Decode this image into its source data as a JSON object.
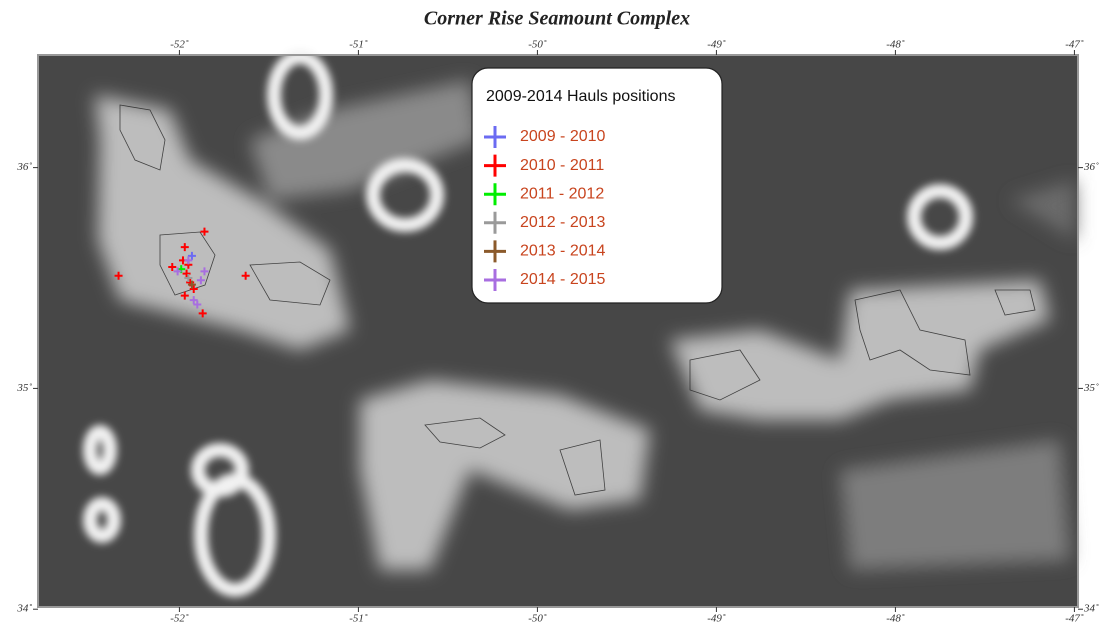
{
  "chart_data": {
    "type": "scatter",
    "title": "Corner Rise Seamount Complex",
    "legend_title": "2009-2014 Hauls positions",
    "xlim": [
      -52.79,
      -46.98
    ],
    "ylim": [
      34.01,
      36.51
    ],
    "xticks": [
      {
        "value": -52,
        "label": "-52˚"
      },
      {
        "value": -51,
        "label": "-51˚"
      },
      {
        "value": -50,
        "label": "-50˚"
      },
      {
        "value": -49,
        "label": "-49˚"
      },
      {
        "value": -48,
        "label": "-48˚"
      },
      {
        "value": -47,
        "label": "-47˚"
      }
    ],
    "yticks": [
      {
        "value": 36,
        "label": "36˚"
      },
      {
        "value": 35,
        "label": "35˚"
      },
      {
        "value": 34,
        "label": "34˚"
      }
    ],
    "series": [
      {
        "name": "2009 - 2010",
        "color": "#6b6bf2",
        "x": [
          -51.93
        ],
        "values": [
          35.6
        ]
      },
      {
        "name": "2010 - 2011",
        "color": "#ff0000",
        "x": [
          -52.34,
          -51.86,
          -51.97,
          -51.63,
          -51.87,
          -52.04,
          -51.98,
          -51.96,
          -51.94,
          -51.92,
          -51.97,
          -51.95
        ],
        "values": [
          35.51,
          35.71,
          35.64,
          35.51,
          35.34,
          35.55,
          35.58,
          35.52,
          35.48,
          35.45,
          35.42,
          35.56
        ]
      },
      {
        "name": "2011 - 2012",
        "color": "#00ee00",
        "x": [
          -51.99
        ],
        "values": [
          35.54
        ]
      },
      {
        "name": "2012 - 2013",
        "color": "#9a9a9a",
        "x": [
          -51.95
        ],
        "values": [
          35.5
        ]
      },
      {
        "name": "2013 - 2014",
        "color": "#8b5a2b",
        "x": [
          -51.93
        ],
        "values": [
          35.47
        ]
      },
      {
        "name": "2014 - 2015",
        "color": "#a86ee0",
        "x": [
          -52.01,
          -51.86,
          -51.92,
          -51.9,
          -51.95,
          -51.88
        ],
        "values": [
          35.53,
          35.53,
          35.4,
          35.38,
          35.58,
          35.49
        ]
      }
    ]
  }
}
